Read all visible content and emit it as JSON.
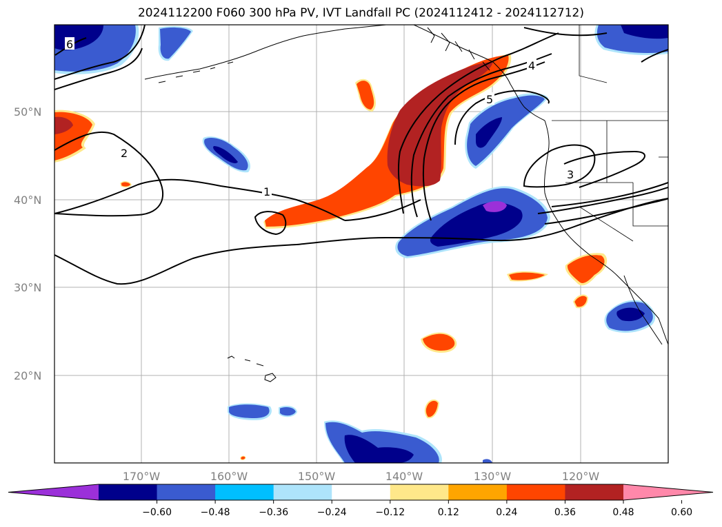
{
  "title": "2024112200 F060 300 hPa PV, IVT Landfall PC (2024112412 - 2024112712)",
  "map": {
    "lat_labels": [
      "50°N",
      "40°N",
      "30°N",
      "20°N"
    ],
    "lon_labels": [
      "170°W",
      "160°W",
      "150°W",
      "140°W",
      "130°W",
      "120°W"
    ],
    "contour_labels": [
      "1",
      "2",
      "3",
      "4",
      "5",
      "6"
    ]
  },
  "colorbar": {
    "colors": [
      "#9b30d9",
      "#00008b",
      "#3a5bd0",
      "#00bfff",
      "#aee4fb",
      "#ffffff",
      "#ffe88a",
      "#ffa500",
      "#ff4500",
      "#b22222",
      "#ff88aa"
    ],
    "ticks": [
      "−0.60",
      "−0.48",
      "−0.36",
      "−0.24",
      "−0.12",
      "0.12",
      "0.24",
      "0.36",
      "0.48",
      "0.60"
    ]
  }
}
